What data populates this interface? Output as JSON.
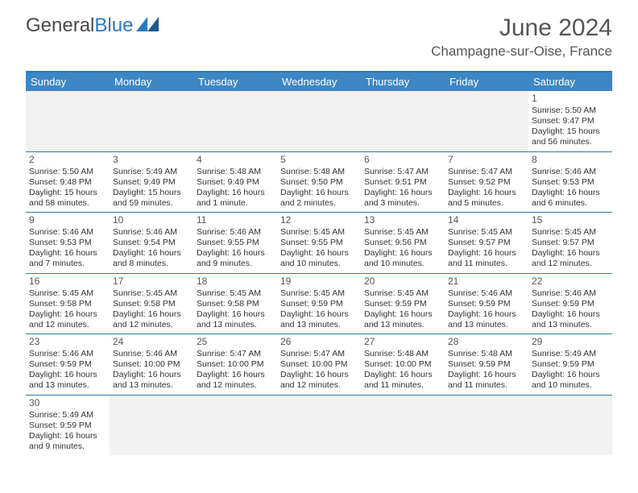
{
  "brand": {
    "text1": "General",
    "text2": "Blue"
  },
  "title": "June 2024",
  "location": "Champagne-sur-Oise, France",
  "colors": {
    "header_bg": "#3d87c4",
    "border": "#2b7ab8",
    "blank_bg": "#f2f2f2",
    "text": "#333333",
    "title_text": "#555555"
  },
  "day_names": [
    "Sunday",
    "Monday",
    "Tuesday",
    "Wednesday",
    "Thursday",
    "Friday",
    "Saturday"
  ],
  "weeks": [
    [
      null,
      null,
      null,
      null,
      null,
      null,
      {
        "n": "1",
        "sr": "Sunrise: 5:50 AM",
        "ss": "Sunset: 9:47 PM",
        "d1": "Daylight: 15 hours",
        "d2": "and 56 minutes."
      }
    ],
    [
      {
        "n": "2",
        "sr": "Sunrise: 5:50 AM",
        "ss": "Sunset: 9:48 PM",
        "d1": "Daylight: 15 hours",
        "d2": "and 58 minutes."
      },
      {
        "n": "3",
        "sr": "Sunrise: 5:49 AM",
        "ss": "Sunset: 9:49 PM",
        "d1": "Daylight: 15 hours",
        "d2": "and 59 minutes."
      },
      {
        "n": "4",
        "sr": "Sunrise: 5:48 AM",
        "ss": "Sunset: 9:49 PM",
        "d1": "Daylight: 16 hours",
        "d2": "and 1 minute."
      },
      {
        "n": "5",
        "sr": "Sunrise: 5:48 AM",
        "ss": "Sunset: 9:50 PM",
        "d1": "Daylight: 16 hours",
        "d2": "and 2 minutes."
      },
      {
        "n": "6",
        "sr": "Sunrise: 5:47 AM",
        "ss": "Sunset: 9:51 PM",
        "d1": "Daylight: 16 hours",
        "d2": "and 3 minutes."
      },
      {
        "n": "7",
        "sr": "Sunrise: 5:47 AM",
        "ss": "Sunset: 9:52 PM",
        "d1": "Daylight: 16 hours",
        "d2": "and 5 minutes."
      },
      {
        "n": "8",
        "sr": "Sunrise: 5:46 AM",
        "ss": "Sunset: 9:53 PM",
        "d1": "Daylight: 16 hours",
        "d2": "and 6 minutes."
      }
    ],
    [
      {
        "n": "9",
        "sr": "Sunrise: 5:46 AM",
        "ss": "Sunset: 9:53 PM",
        "d1": "Daylight: 16 hours",
        "d2": "and 7 minutes."
      },
      {
        "n": "10",
        "sr": "Sunrise: 5:46 AM",
        "ss": "Sunset: 9:54 PM",
        "d1": "Daylight: 16 hours",
        "d2": "and 8 minutes."
      },
      {
        "n": "11",
        "sr": "Sunrise: 5:46 AM",
        "ss": "Sunset: 9:55 PM",
        "d1": "Daylight: 16 hours",
        "d2": "and 9 minutes."
      },
      {
        "n": "12",
        "sr": "Sunrise: 5:45 AM",
        "ss": "Sunset: 9:55 PM",
        "d1": "Daylight: 16 hours",
        "d2": "and 10 minutes."
      },
      {
        "n": "13",
        "sr": "Sunrise: 5:45 AM",
        "ss": "Sunset: 9:56 PM",
        "d1": "Daylight: 16 hours",
        "d2": "and 10 minutes."
      },
      {
        "n": "14",
        "sr": "Sunrise: 5:45 AM",
        "ss": "Sunset: 9:57 PM",
        "d1": "Daylight: 16 hours",
        "d2": "and 11 minutes."
      },
      {
        "n": "15",
        "sr": "Sunrise: 5:45 AM",
        "ss": "Sunset: 9:57 PM",
        "d1": "Daylight: 16 hours",
        "d2": "and 12 minutes."
      }
    ],
    [
      {
        "n": "16",
        "sr": "Sunrise: 5:45 AM",
        "ss": "Sunset: 9:58 PM",
        "d1": "Daylight: 16 hours",
        "d2": "and 12 minutes."
      },
      {
        "n": "17",
        "sr": "Sunrise: 5:45 AM",
        "ss": "Sunset: 9:58 PM",
        "d1": "Daylight: 16 hours",
        "d2": "and 12 minutes."
      },
      {
        "n": "18",
        "sr": "Sunrise: 5:45 AM",
        "ss": "Sunset: 9:58 PM",
        "d1": "Daylight: 16 hours",
        "d2": "and 13 minutes."
      },
      {
        "n": "19",
        "sr": "Sunrise: 5:45 AM",
        "ss": "Sunset: 9:59 PM",
        "d1": "Daylight: 16 hours",
        "d2": "and 13 minutes."
      },
      {
        "n": "20",
        "sr": "Sunrise: 5:45 AM",
        "ss": "Sunset: 9:59 PM",
        "d1": "Daylight: 16 hours",
        "d2": "and 13 minutes."
      },
      {
        "n": "21",
        "sr": "Sunrise: 5:46 AM",
        "ss": "Sunset: 9:59 PM",
        "d1": "Daylight: 16 hours",
        "d2": "and 13 minutes."
      },
      {
        "n": "22",
        "sr": "Sunrise: 5:46 AM",
        "ss": "Sunset: 9:59 PM",
        "d1": "Daylight: 16 hours",
        "d2": "and 13 minutes."
      }
    ],
    [
      {
        "n": "23",
        "sr": "Sunrise: 5:46 AM",
        "ss": "Sunset: 9:59 PM",
        "d1": "Daylight: 16 hours",
        "d2": "and 13 minutes."
      },
      {
        "n": "24",
        "sr": "Sunrise: 5:46 AM",
        "ss": "Sunset: 10:00 PM",
        "d1": "Daylight: 16 hours",
        "d2": "and 13 minutes."
      },
      {
        "n": "25",
        "sr": "Sunrise: 5:47 AM",
        "ss": "Sunset: 10:00 PM",
        "d1": "Daylight: 16 hours",
        "d2": "and 12 minutes."
      },
      {
        "n": "26",
        "sr": "Sunrise: 5:47 AM",
        "ss": "Sunset: 10:00 PM",
        "d1": "Daylight: 16 hours",
        "d2": "and 12 minutes."
      },
      {
        "n": "27",
        "sr": "Sunrise: 5:48 AM",
        "ss": "Sunset: 10:00 PM",
        "d1": "Daylight: 16 hours",
        "d2": "and 11 minutes."
      },
      {
        "n": "28",
        "sr": "Sunrise: 5:48 AM",
        "ss": "Sunset: 9:59 PM",
        "d1": "Daylight: 16 hours",
        "d2": "and 11 minutes."
      },
      {
        "n": "29",
        "sr": "Sunrise: 5:49 AM",
        "ss": "Sunset: 9:59 PM",
        "d1": "Daylight: 16 hours",
        "d2": "and 10 minutes."
      }
    ],
    [
      {
        "n": "30",
        "sr": "Sunrise: 5:49 AM",
        "ss": "Sunset: 9:59 PM",
        "d1": "Daylight: 16 hours",
        "d2": "and 9 minutes."
      },
      null,
      null,
      null,
      null,
      null,
      null
    ]
  ]
}
